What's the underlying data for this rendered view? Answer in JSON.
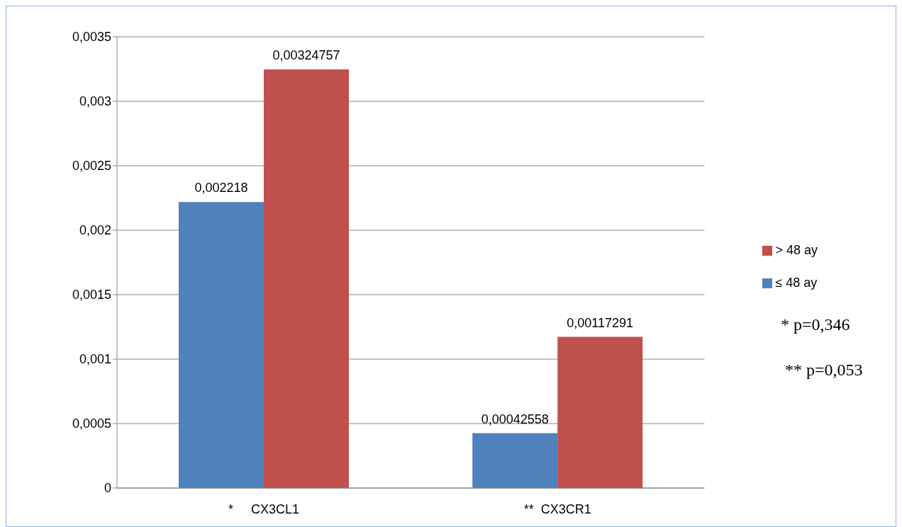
{
  "chart_data": {
    "type": "bar",
    "categories": [
      "*     CX3CL1",
      "**  CX3CR1"
    ],
    "series": [
      {
        "name": "≤ 48 ay",
        "color": "#4f81bd",
        "values": [
          0.002218,
          0.00042558
        ],
        "value_labels": [
          "0,002218",
          "0,00042558"
        ]
      },
      {
        "name": "> 48 ay",
        "color": "#c0504d",
        "values": [
          0.00324757,
          0.00117291
        ],
        "value_labels": [
          "0,00324757",
          "0,00117291"
        ]
      }
    ],
    "ylim": [
      0,
      0.0035
    ],
    "yticks": [
      0,
      {
        "value": 0.0005,
        "label": "0,0005"
      },
      {
        "value": 0.001,
        "label": "0,001"
      },
      {
        "value": 0.0015,
        "label": "0,0015"
      },
      {
        "value": 0.002,
        "label": "0,002"
      },
      {
        "value": 0.0025,
        "label": "0,0025"
      },
      {
        "value": 0.003,
        "label": "0,003"
      },
      {
        "value": 0.0035,
        "label": "0,0035"
      }
    ],
    "grid": "y",
    "legend": "right",
    "annotations": [
      "* p=0,346",
      "** p=0,053"
    ]
  }
}
